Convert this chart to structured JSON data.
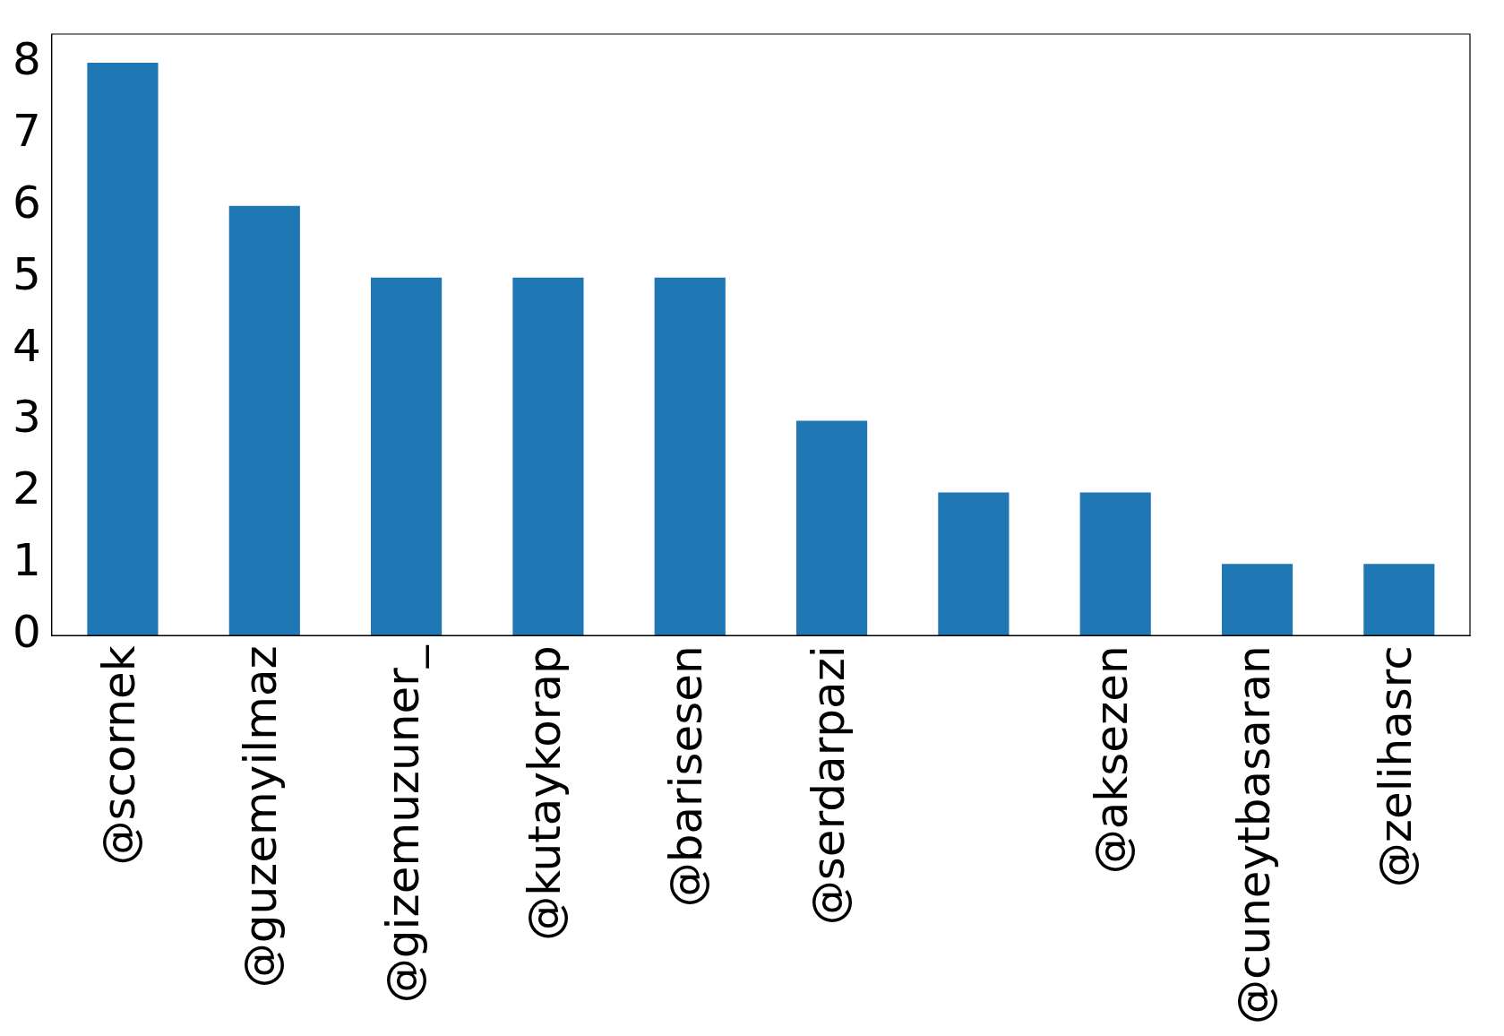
{
  "chart_data": {
    "type": "bar",
    "categories": [
      "@scornek",
      "@guzemyilmaz",
      "@gizemuzuner_",
      "@kutaykorap",
      "@barisesen",
      "@serdarpazi",
      null,
      "@aksezen",
      "@cuneytbasaran",
      "@zelihasrc"
    ],
    "values": [
      8,
      6,
      5,
      5,
      5,
      3,
      2,
      2,
      1,
      1
    ],
    "color": "#1f77b4",
    "ylim": [
      0,
      8.4
    ],
    "yticks": [
      0,
      1,
      2,
      3,
      4,
      5,
      6,
      7,
      8
    ],
    "grid": false
  }
}
